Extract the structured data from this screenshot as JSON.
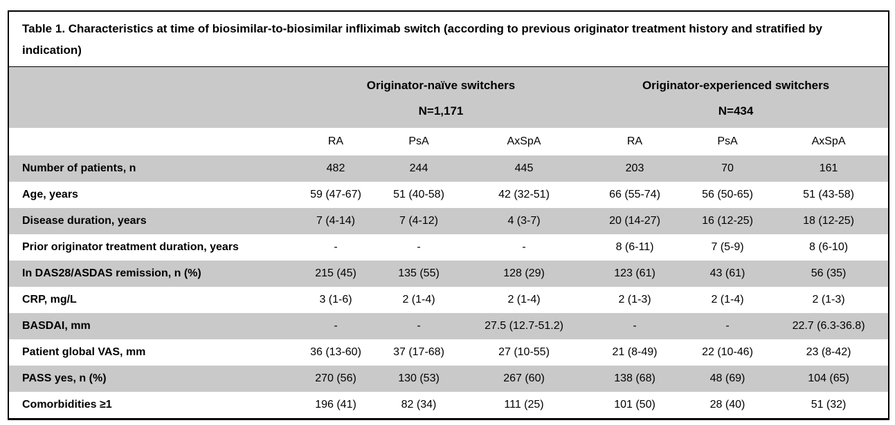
{
  "table": {
    "title": "Table 1. Characteristics at time of biosimilar-to-biosimilar infliximab switch (according to previous originator treatment history and stratified by indication)",
    "groups": [
      {
        "label": "Originator-naïve switchers",
        "n": "N=1,171"
      },
      {
        "label": "Originator-experienced switchers",
        "n": "N=434"
      }
    ],
    "columns": [
      "RA",
      "PsA",
      "AxSpA",
      "RA",
      "PsA",
      "AxSpA"
    ],
    "rows": [
      {
        "label": "Number of patients, n",
        "values": [
          "482",
          "244",
          "445",
          "203",
          "70",
          "161"
        ]
      },
      {
        "label": "Age, years",
        "values": [
          "59 (47-67)",
          "51 (40-58)",
          "42 (32-51)",
          "66 (55-74)",
          "56 (50-65)",
          "51 (43-58)"
        ]
      },
      {
        "label": "Disease duration, years",
        "values": [
          "7 (4-14)",
          "7 (4-12)",
          "4 (3-7)",
          "20 (14-27)",
          "16 (12-25)",
          "18 (12-25)"
        ]
      },
      {
        "label": "Prior originator treatment duration, years",
        "values": [
          "-",
          "-",
          "-",
          "8 (6-11)",
          "7 (5-9)",
          "8 (6-10)"
        ]
      },
      {
        "label": "In DAS28/ASDAS remission, n (%)",
        "values": [
          "215 (45)",
          "135 (55)",
          "128 (29)",
          "123 (61)",
          "43 (61)",
          "56 (35)"
        ]
      },
      {
        "label": "CRP, mg/L",
        "values": [
          "3 (1-6)",
          "2 (1-4)",
          "2 (1-4)",
          "2 (1-3)",
          "2 (1-4)",
          "2 (1-3)"
        ]
      },
      {
        "label": "BASDAI, mm",
        "values": [
          "-",
          "-",
          "27.5 (12.7-51.2)",
          "-",
          "-",
          "22.7 (6.3-36.8)"
        ]
      },
      {
        "label": "Patient global VAS, mm",
        "values": [
          "36 (13-60)",
          "37 (17-68)",
          "27 (10-55)",
          "21 (8-49)",
          "22 (10-46)",
          "23 (8-42)"
        ]
      },
      {
        "label": "PASS yes, n (%)",
        "values": [
          "270 (56)",
          "130 (53)",
          "267 (60)",
          "138 (68)",
          "48 (69)",
          "104 (65)"
        ]
      },
      {
        "label": "Comorbidities ≥1",
        "values": [
          "196 (41)",
          "82 (34)",
          "111 (25)",
          "101 (50)",
          "28 (40)",
          "51 (32)"
        ]
      }
    ],
    "colors": {
      "shading": "#c9c9c9",
      "border": "#000000",
      "background": "#ffffff",
      "text": "#000000"
    }
  }
}
